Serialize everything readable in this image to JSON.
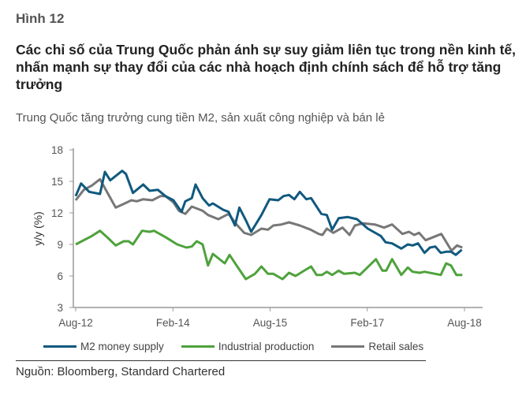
{
  "figure_label": "Hình 12",
  "title": "Các chỉ số của Trung Quốc phản ánh sự suy giảm liên tục trong nền kinh tế, nhấn mạnh sự thay đổi của các nhà hoạch định chính sách để hỗ trợ tăng trưởng",
  "source": "Nguồn: Bloomberg, Standard Chartered",
  "chart_data": {
    "type": "line",
    "title": "Trung Quốc tăng trưởng cung tiền M2, sản xuất công nghiệp và bán lẻ",
    "xlabel": "",
    "ylabel": "y/y (%)",
    "x_unit": "months since Aug-12",
    "xlim": [
      0,
      72
    ],
    "ylim": [
      3,
      18
    ],
    "yticks": [
      3,
      6,
      9,
      12,
      15,
      18
    ],
    "xticks": [
      {
        "value": 0,
        "label": "Aug-12"
      },
      {
        "value": 18,
        "label": "Feb-14"
      },
      {
        "value": 36,
        "label": "Aug-15"
      },
      {
        "value": 54,
        "label": "Feb-17"
      },
      {
        "value": 72,
        "label": "Aug-18"
      }
    ],
    "grid": false,
    "legend_position": "bottom",
    "series": [
      {
        "name": "M2 money supply",
        "color": "#10597e",
        "x": [
          0,
          1,
          2.5,
          4.5,
          5.4,
          6.4,
          8.6,
          9.3,
          10.6,
          12.5,
          13.7,
          15.2,
          16.6,
          18.1,
          19.6,
          20.3,
          21.5,
          22.2,
          23.5,
          24.7,
          25.4,
          27.3,
          28.3,
          29.5,
          30.3,
          31.5,
          32.5,
          34.4,
          35.9,
          37.5,
          38.5,
          39.5,
          40.5,
          41.5,
          42.7,
          43.6,
          45.5,
          46.5,
          47.5,
          48.7,
          50.4,
          52.1,
          54.1,
          56.5,
          57.4,
          58.6,
          60.3,
          61.5,
          62.4,
          63.4,
          64.6,
          65.6,
          66.6,
          67.6,
          68.6,
          69.5,
          70.4,
          71.5
        ],
        "y": [
          13.6,
          14.8,
          14.0,
          13.8,
          15.9,
          15.1,
          16.0,
          15.7,
          13.9,
          14.7,
          14.1,
          14.2,
          13.6,
          13.2,
          12.1,
          13.1,
          13.4,
          14.7,
          13.4,
          12.7,
          12.9,
          12.3,
          12.1,
          10.8,
          12.5,
          11.3,
          10.2,
          11.8,
          13.3,
          13.2,
          13.6,
          13.7,
          13.3,
          14.0,
          13.3,
          13.4,
          11.9,
          11.8,
          10.4,
          11.5,
          11.6,
          11.4,
          10.5,
          9.8,
          9.2,
          9.1,
          8.6,
          9.0,
          8.9,
          9.1,
          8.2,
          8.7,
          8.8,
          8.2,
          8.3,
          8.3,
          8.0,
          8.5
        ]
      },
      {
        "name": "Industrial production",
        "color": "#4ea23c",
        "x": [
          0,
          3,
          4.5,
          6,
          7.4,
          8.9,
          9.8,
          10.6,
          12.3,
          13.7,
          14.5,
          16.6,
          18.8,
          20.5,
          21.5,
          22.4,
          23.5,
          24.5,
          25.4,
          27.6,
          28.5,
          29.8,
          31.5,
          33.2,
          34.4,
          35.6,
          36.6,
          38.3,
          39.5,
          40.7,
          43.6,
          44.6,
          45.6,
          46.5,
          47.5,
          48.7,
          49.7,
          51.7,
          52.6,
          55.6,
          56.8,
          57.5,
          58.6,
          60.3,
          61.5,
          62.4,
          63.7,
          64.6,
          67.6,
          68.6,
          69.5,
          70.5,
          71.6
        ],
        "y": [
          9.0,
          9.8,
          10.3,
          9.6,
          8.9,
          9.3,
          9.3,
          9.0,
          10.3,
          10.2,
          10.3,
          9.7,
          9.0,
          8.7,
          8.8,
          9.3,
          9.0,
          7.0,
          8.1,
          7.2,
          8.0,
          7.0,
          5.7,
          6.2,
          6.9,
          6.2,
          6.2,
          5.7,
          6.3,
          6.0,
          6.9,
          6.1,
          6.1,
          6.4,
          6.1,
          6.5,
          6.2,
          6.3,
          6.1,
          7.6,
          6.5,
          6.5,
          7.6,
          6.1,
          6.8,
          6.4,
          6.3,
          6.4,
          6.1,
          7.2,
          7.0,
          6.1,
          6.1
        ]
      },
      {
        "name": "Retail sales",
        "color": "#777777",
        "x": [
          0,
          1.5,
          3,
          4.5,
          6,
          7.4,
          9.1,
          10.3,
          11.3,
          12.5,
          14.2,
          15.7,
          16.6,
          18.1,
          19.1,
          20.3,
          21.5,
          23.5,
          24.5,
          26.4,
          28.3,
          29.8,
          31.2,
          32.5,
          34.4,
          35.6,
          36.6,
          38.1,
          39.5,
          41.5,
          43.5,
          45,
          45.7,
          46.5,
          47.7,
          49.4,
          50.7,
          51.7,
          53.2,
          55.4,
          57.1,
          58.6,
          60.5,
          61.7,
          62.7,
          63.6,
          64.8,
          67.7,
          69.6,
          70.6,
          71.6
        ],
        "y": [
          13.2,
          14.2,
          14.6,
          15.2,
          13.8,
          12.5,
          12.9,
          13.2,
          13.1,
          13.3,
          13.2,
          13.6,
          13.6,
          13.0,
          12.2,
          11.9,
          12.6,
          12.2,
          11.8,
          11.4,
          11.9,
          10.9,
          10.1,
          9.9,
          10.5,
          10.4,
          10.8,
          10.9,
          11.1,
          10.8,
          10.4,
          10.0,
          9.9,
          10.5,
          10.1,
          10.6,
          9.9,
          10.8,
          11.0,
          10.9,
          10.6,
          10.9,
          10.0,
          10.2,
          9.9,
          10.1,
          9.4,
          10.0,
          8.4,
          8.9,
          8.7
        ]
      }
    ]
  }
}
